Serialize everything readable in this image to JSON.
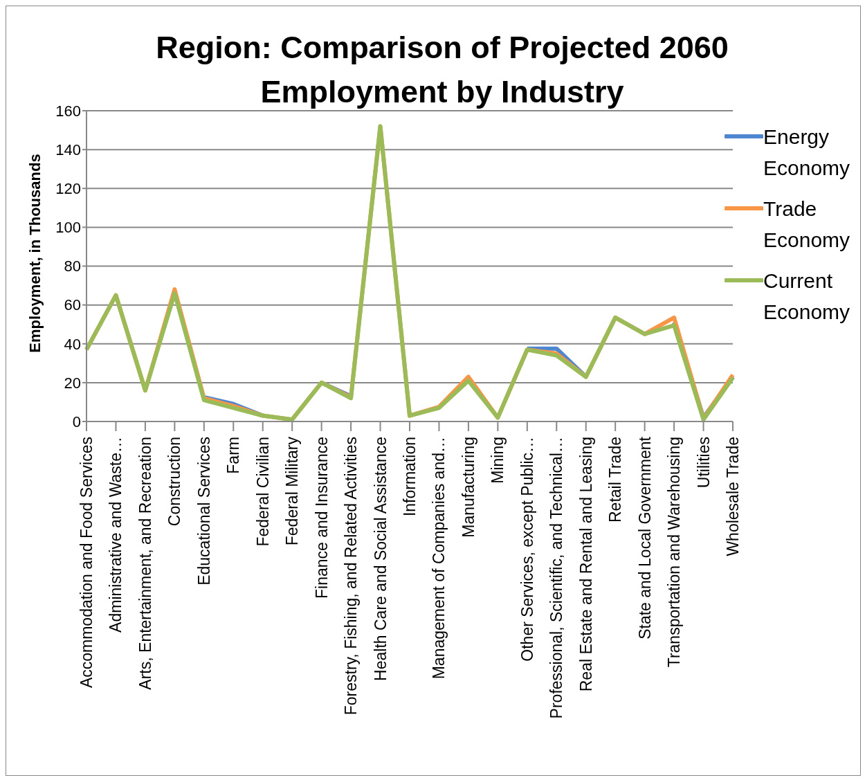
{
  "chart_data": {
    "type": "line",
    "title": "Region: Comparison of Projected 2060 Employment by Industry",
    "ylabel": "Employment, in Thousands",
    "categories": [
      "Accommodation and Food Services",
      "Administrative and Waste…",
      "Arts, Entertainment, and Recreation",
      "Construction",
      "Educational Services",
      "Farm",
      "Federal Civilian",
      "Federal Military",
      "Finance and Insurance",
      "Forestry, Fishing, and Related Activities",
      "Health Care and Social Assistance",
      "Information",
      "Management of Companies and…",
      "Manufacturing",
      "Mining",
      "Other Services, except Public…",
      "Professional, Scientific, and Technical…",
      "Real Estate and Rental and Leasing",
      "Retail Trade",
      "State and Local Government",
      "Transportation and Warehousing",
      "Utilities",
      "Wholesale Trade"
    ],
    "series": [
      {
        "name": "Energy Economy",
        "color": "#4f86d0",
        "values": [
          null,
          null,
          null,
          null,
          12.5,
          9,
          3,
          null,
          20,
          13,
          null,
          null,
          null,
          null,
          null,
          37.5,
          37.5,
          23,
          null,
          null,
          51,
          2,
          23
        ]
      },
      {
        "name": "Trade Economy",
        "color": "#f79646",
        "values": [
          37,
          65,
          16,
          68,
          12,
          8,
          3,
          1,
          20,
          12.5,
          152,
          3,
          7.5,
          23,
          2,
          37,
          35,
          23,
          53.5,
          45,
          53.5,
          1.5,
          24
        ]
      },
      {
        "name": "Current Economy",
        "color": "#9bbb59",
        "values": [
          37,
          65,
          16,
          66,
          11,
          7,
          3,
          1,
          20,
          12,
          152,
          3,
          7,
          21,
          2,
          37,
          34,
          23,
          53.5,
          45,
          49.5,
          1,
          22.5
        ]
      }
    ],
    "ylim": [
      0,
      160
    ],
    "yticks": [
      0,
      20,
      40,
      60,
      80,
      100,
      120,
      140,
      160
    ],
    "grid": "y",
    "legend": "right",
    "marker": "none",
    "line_style": "solid"
  }
}
